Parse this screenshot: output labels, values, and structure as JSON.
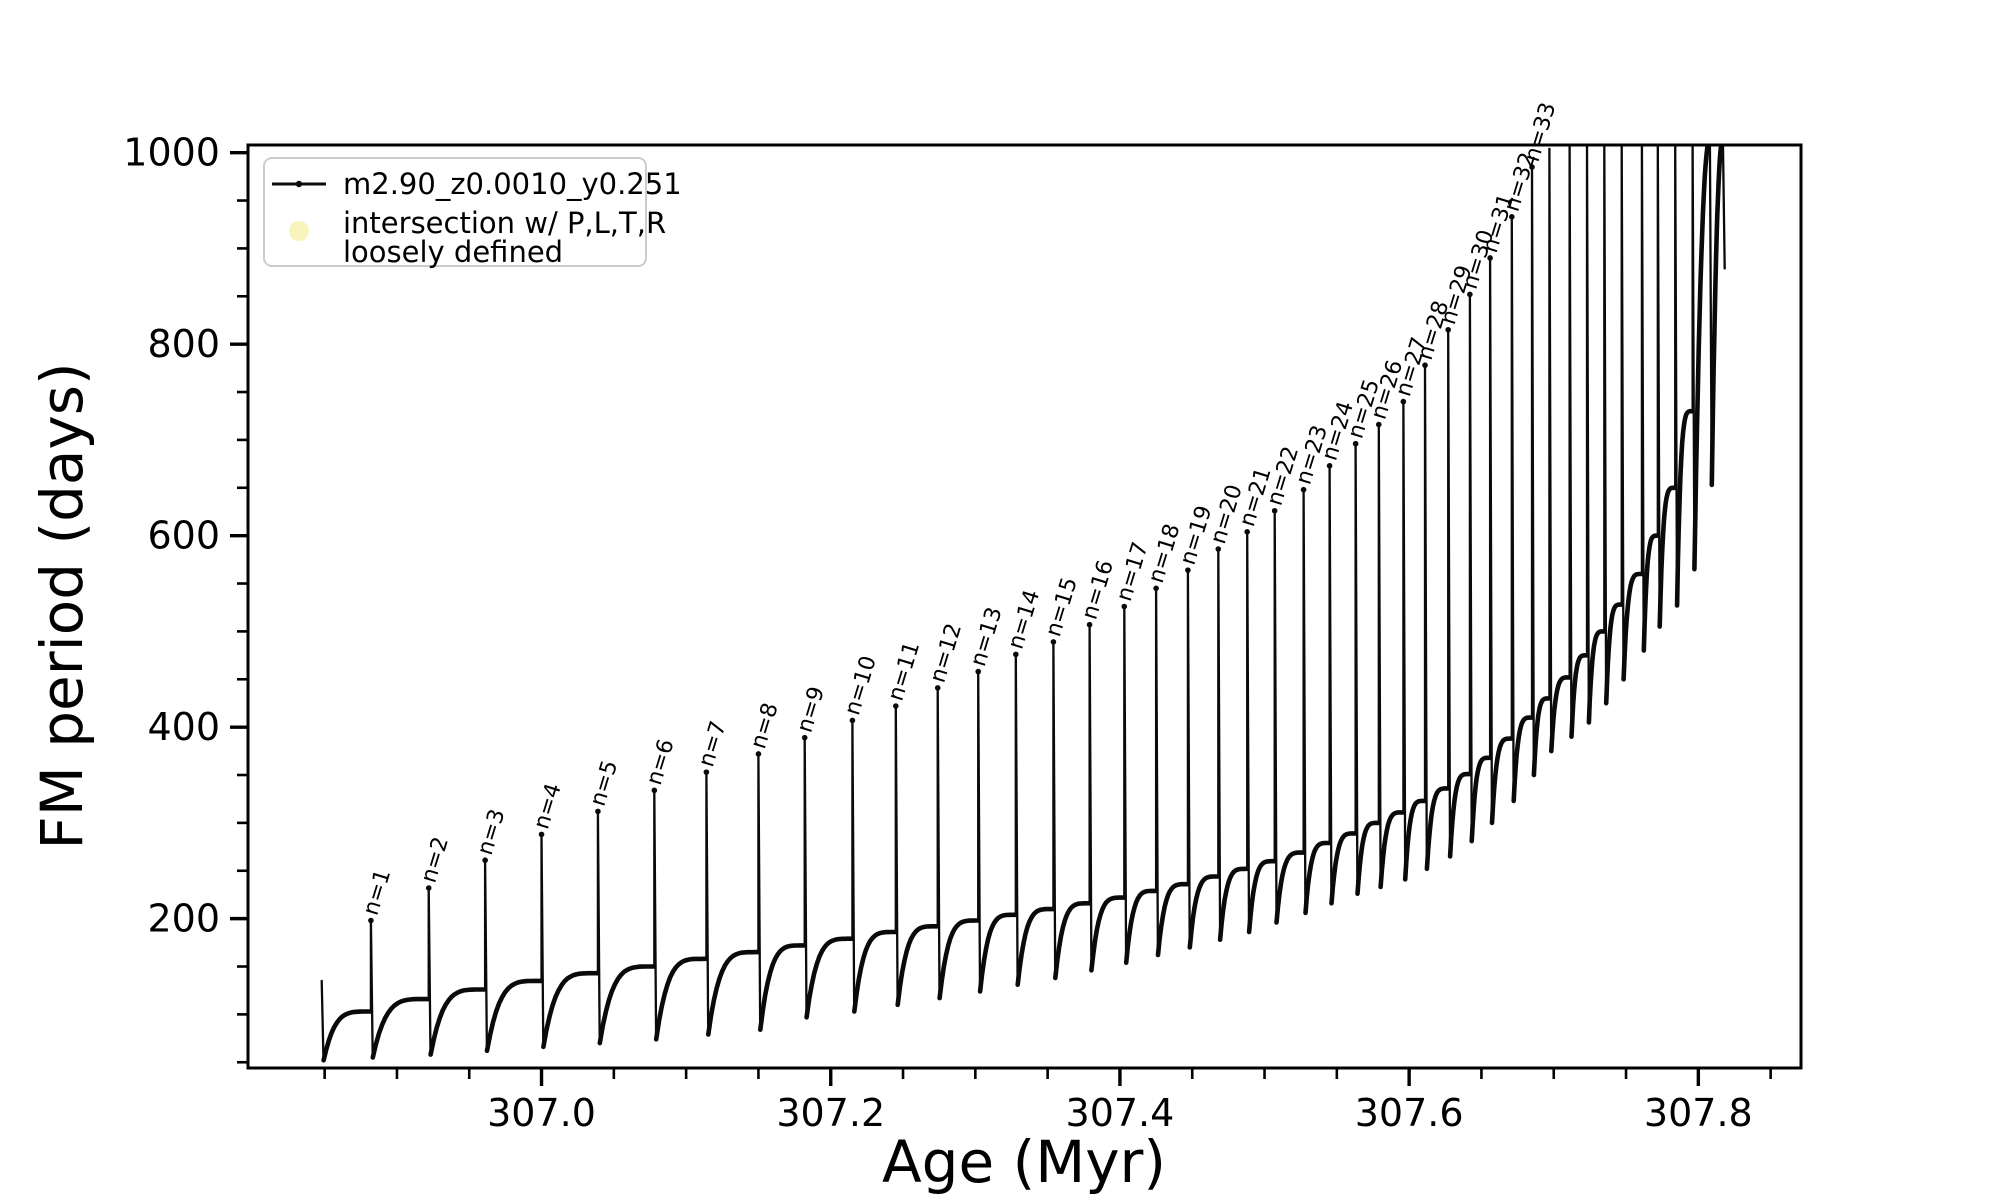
{
  "figure": {
    "background": "#ffffff",
    "line_color": "#0a0a0a",
    "spine_color": "#000000",
    "legend_border_color": "#cccccc",
    "intersection_marker_color": "#f7f3b4"
  },
  "chart_data": {
    "type": "line",
    "title": "",
    "xlabel": "Age (Myr)",
    "ylabel": "FM period (days)",
    "xlim": [
      306.797,
      307.871
    ],
    "ylim": [
      44,
      1008
    ],
    "grid": false,
    "legend_position": "upper-left",
    "x_major_ticks": [
      307.0,
      307.2,
      307.4,
      307.6,
      307.8
    ],
    "x_tick_labels": [
      "307.0",
      "307.2",
      "307.4",
      "307.6",
      "307.8"
    ],
    "x_minor_tick_step": 0.05,
    "y_major_ticks": [
      200,
      400,
      600,
      800,
      1000
    ],
    "y_tick_labels": [
      "200",
      "400",
      "600",
      "800",
      "1000"
    ],
    "y_minor_tick_step": 50,
    "legend": {
      "entries": [
        {
          "marker": "line-dot",
          "lines": [
            "m2.90_z0.0010_y0.251"
          ]
        },
        {
          "marker": "circle",
          "lines": [
            "intersection w/ P,L,T,R",
            "loosely defined"
          ]
        }
      ]
    },
    "series_name": "m2.90_z0.0010_y0.251",
    "cycles_note": "Each cycle: baseline plateau 'base' just before a sharp spike at age x up to 'peak', immediate drop to 'min', then concave recovery toward next base. Peaks above ylim are clipped at the axes top.",
    "cycles": [
      {
        "x": 306.848,
        "label": null,
        "peak": 135,
        "base": 135,
        "min": 52
      },
      {
        "x": 306.882,
        "label": "n=1",
        "peak": 198,
        "base": 103,
        "min": 55
      },
      {
        "x": 306.922,
        "label": "n=2",
        "peak": 232,
        "base": 116,
        "min": 58
      },
      {
        "x": 306.961,
        "label": "n=3",
        "peak": 261,
        "base": 126,
        "min": 62
      },
      {
        "x": 307.0,
        "label": "n=4",
        "peak": 288,
        "base": 135,
        "min": 66
      },
      {
        "x": 307.039,
        "label": "n=5",
        "peak": 312,
        "base": 143,
        "min": 70
      },
      {
        "x": 307.078,
        "label": "n=6",
        "peak": 334,
        "base": 150,
        "min": 74
      },
      {
        "x": 307.114,
        "label": "n=7",
        "peak": 353,
        "base": 158,
        "min": 79
      },
      {
        "x": 307.15,
        "label": "n=8",
        "peak": 372,
        "base": 165,
        "min": 84
      },
      {
        "x": 307.182,
        "label": "n=9",
        "peak": 389,
        "base": 172,
        "min": 97
      },
      {
        "x": 307.215,
        "label": "n=10",
        "peak": 407,
        "base": 179,
        "min": 103
      },
      {
        "x": 307.245,
        "label": "n=11",
        "peak": 422,
        "base": 186,
        "min": 110
      },
      {
        "x": 307.274,
        "label": "n=12",
        "peak": 441,
        "base": 192,
        "min": 117
      },
      {
        "x": 307.302,
        "label": "n=13",
        "peak": 458,
        "base": 198,
        "min": 124
      },
      {
        "x": 307.328,
        "label": "n=14",
        "peak": 476,
        "base": 204,
        "min": 131
      },
      {
        "x": 307.354,
        "label": "n=15",
        "peak": 489,
        "base": 210,
        "min": 138
      },
      {
        "x": 307.379,
        "label": "n=16",
        "peak": 507,
        "base": 216,
        "min": 146
      },
      {
        "x": 307.403,
        "label": "n=17",
        "peak": 526,
        "base": 222,
        "min": 154
      },
      {
        "x": 307.425,
        "label": "n=18",
        "peak": 545,
        "base": 229,
        "min": 162
      },
      {
        "x": 307.447,
        "label": "n=19",
        "peak": 564,
        "base": 236,
        "min": 170
      },
      {
        "x": 307.468,
        "label": "n=20",
        "peak": 586,
        "base": 244,
        "min": 178
      },
      {
        "x": 307.488,
        "label": "n=21",
        "peak": 604,
        "base": 252,
        "min": 186
      },
      {
        "x": 307.507,
        "label": "n=22",
        "peak": 626,
        "base": 260,
        "min": 196
      },
      {
        "x": 307.527,
        "label": "n=23",
        "peak": 648,
        "base": 269,
        "min": 206
      },
      {
        "x": 307.545,
        "label": "n=24",
        "peak": 673,
        "base": 279,
        "min": 216
      },
      {
        "x": 307.563,
        "label": "n=25",
        "peak": 696,
        "base": 289,
        "min": 226
      },
      {
        "x": 307.579,
        "label": "n=26",
        "peak": 716,
        "base": 300,
        "min": 233
      },
      {
        "x": 307.596,
        "label": "n=27",
        "peak": 740,
        "base": 311,
        "min": 241
      },
      {
        "x": 307.611,
        "label": "n=28",
        "peak": 778,
        "base": 323,
        "min": 252
      },
      {
        "x": 307.627,
        "label": "n=29",
        "peak": 815,
        "base": 336,
        "min": 265
      },
      {
        "x": 307.642,
        "label": "n=30",
        "peak": 852,
        "base": 351,
        "min": 281
      },
      {
        "x": 307.656,
        "label": "n=31",
        "peak": 890,
        "base": 368,
        "min": 300
      },
      {
        "x": 307.671,
        "label": "n=32",
        "peak": 933,
        "base": 388,
        "min": 323
      },
      {
        "x": 307.685,
        "label": "n=33",
        "peak": 985,
        "base": 410,
        "min": 350
      },
      {
        "x": 307.697,
        "label": null,
        "peak": 1005,
        "base": 430,
        "min": 375
      },
      {
        "x": 307.711,
        "label": null,
        "peak": 1014,
        "base": 452,
        "min": 390
      },
      {
        "x": 307.723,
        "label": null,
        "peak": 1014,
        "base": 475,
        "min": 405
      },
      {
        "x": 307.735,
        "label": null,
        "peak": 1014,
        "base": 500,
        "min": 425
      },
      {
        "x": 307.747,
        "label": null,
        "peak": 1014,
        "base": 528,
        "min": 450
      },
      {
        "x": 307.761,
        "label": null,
        "peak": 1014,
        "base": 560,
        "min": 480
      },
      {
        "x": 307.772,
        "label": null,
        "peak": 1014,
        "base": 600,
        "min": 505
      },
      {
        "x": 307.784,
        "label": null,
        "peak": 1014,
        "base": 650,
        "min": 527
      },
      {
        "x": 307.796,
        "label": null,
        "peak": 1014,
        "base": 730,
        "min": 565
      },
      {
        "x": 307.808,
        "label": null,
        "peak": 1014,
        "base": 1014,
        "min": 653
      },
      {
        "x": 307.817,
        "label": null,
        "peak": 1014,
        "base": 1014,
        "min": 879
      }
    ]
  }
}
